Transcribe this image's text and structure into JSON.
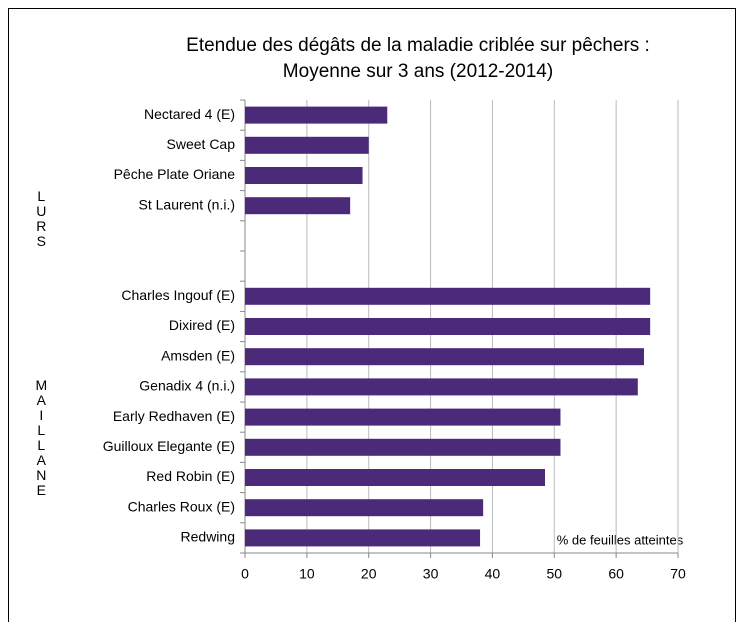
{
  "chart_data": {
    "type": "hbar",
    "title": "Etendue des dégâts de la maladie criblée sur pêchers :",
    "subtitle": "Moyenne sur 3 ans (2012-2014)",
    "x_label": "% de feuilles atteintes",
    "groups": [
      "LURS",
      "MAILLANE"
    ],
    "categories": [
      "Nectared 4 (E)",
      "Sweet Cap",
      "Pêche Plate Oriane",
      "St Laurent (n.i.)",
      null,
      null,
      "Charles Ingouf (E)",
      "Dixired (E)",
      "Amsden (E)",
      "Genadix 4 (n.i.)",
      "Early Redhaven (E)",
      "Guilloux Elegante (E)",
      "Red Robin (E)",
      "Charles Roux (E)",
      "Redwing"
    ],
    "values": [
      23,
      20,
      19,
      17,
      null,
      null,
      65.5,
      65.5,
      64.5,
      63.5,
      51,
      51,
      48.5,
      38.5,
      38
    ],
    "color": "#4b2a7a",
    "xlim": [
      0,
      70
    ],
    "xticks": [
      0,
      10,
      20,
      30,
      40,
      50,
      60,
      70
    ],
    "grid": true
  }
}
